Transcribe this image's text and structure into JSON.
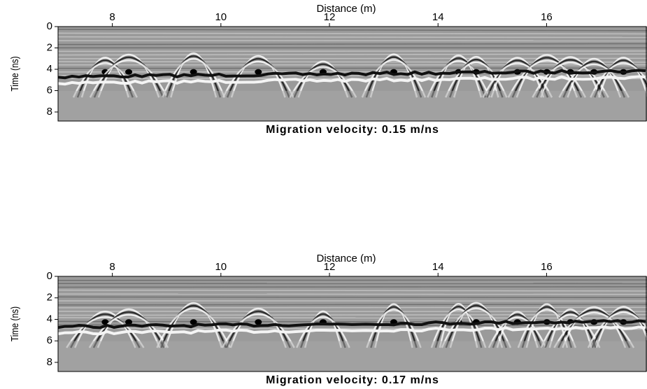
{
  "chart_data": [
    {
      "type": "radargram",
      "xlabel": "Distance (m)",
      "ylabel": "Time (ns)",
      "title": "Migration velocity: 0.15 m/ns",
      "xlim": [
        7.0,
        17.85
      ],
      "xticks": [
        8,
        10,
        12,
        14,
        16
      ],
      "ylim": [
        0,
        8.85
      ],
      "yticks": [
        0,
        2,
        4,
        6,
        8
      ]
    },
    {
      "type": "radargram",
      "xlabel": "Distance (m)",
      "ylabel": "Time (ns)",
      "title": "Migration velocity: 0.17 m/ns",
      "xlim": [
        7.0,
        17.85
      ],
      "xticks": [
        8,
        10,
        12,
        14,
        16
      ],
      "ylim": [
        0,
        8.85
      ],
      "yticks": [
        0,
        2,
        4,
        6,
        8
      ]
    }
  ]
}
